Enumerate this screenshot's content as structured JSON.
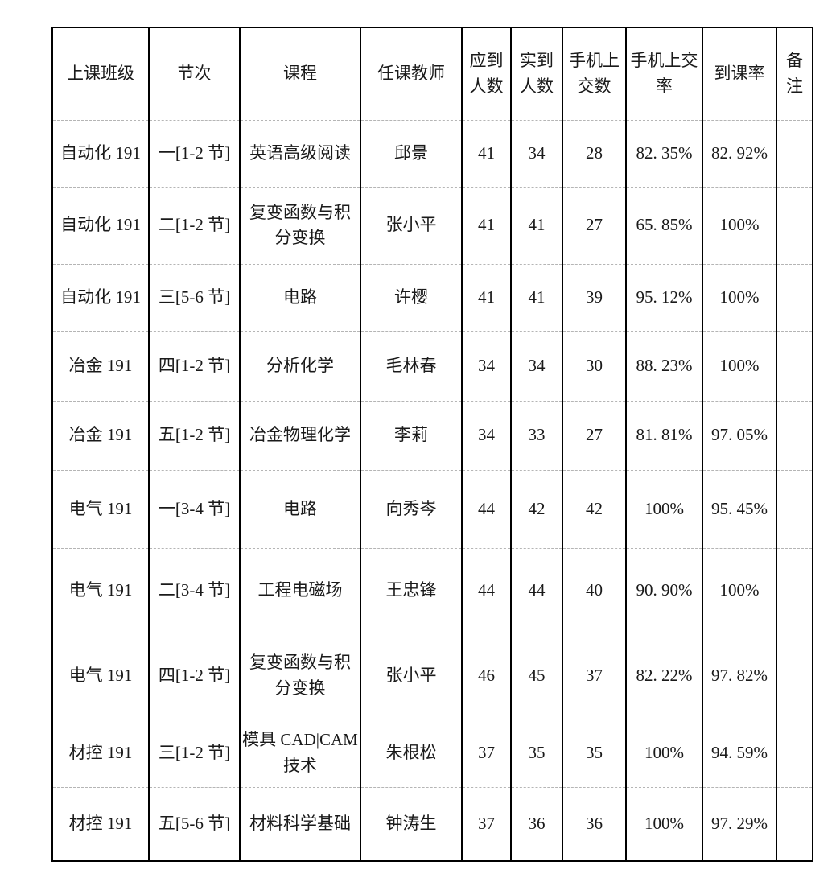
{
  "colors": {
    "background": "#ffffff",
    "text": "#1a1a1a",
    "grid_solid": "#000000",
    "grid_dashed": "#b5b5b5"
  },
  "table": {
    "headers": [
      "上课班级",
      "节次",
      "课程",
      "任课教师",
      "应到人数",
      "实到人数",
      "手机上交数",
      "手机上交率",
      "到课率",
      "备注"
    ],
    "columns_keys": [
      "class_name",
      "period",
      "course",
      "teacher",
      "expected_count",
      "actual_count",
      "phones_submitted",
      "phone_submit_rate",
      "attendance_rate",
      "remark"
    ],
    "rows": [
      {
        "class_name": "自动化 191",
        "period": "一[1-2 节]",
        "course": "英语高级阅读",
        "teacher": "邱景",
        "expected_count": "41",
        "actual_count": "34",
        "phones_submitted": "28",
        "phone_submit_rate": "82. 35%",
        "attendance_rate": "82. 92%",
        "remark": ""
      },
      {
        "class_name": "自动化 191",
        "period": "二[1-2 节]",
        "course": "复变函数与积分变换",
        "teacher": "张小平",
        "expected_count": "41",
        "actual_count": "41",
        "phones_submitted": "27",
        "phone_submit_rate": "65. 85%",
        "attendance_rate": "100%",
        "remark": ""
      },
      {
        "class_name": "自动化 191",
        "period": "三[5-6 节]",
        "course": "电路",
        "teacher": "许樱",
        "expected_count": "41",
        "actual_count": "41",
        "phones_submitted": "39",
        "phone_submit_rate": "95. 12%",
        "attendance_rate": "100%",
        "remark": ""
      },
      {
        "class_name": "冶金 191",
        "period": "四[1-2 节]",
        "course": "分析化学",
        "teacher": "毛林春",
        "expected_count": "34",
        "actual_count": "34",
        "phones_submitted": "30",
        "phone_submit_rate": "88. 23%",
        "attendance_rate": "100%",
        "remark": ""
      },
      {
        "class_name": "冶金 191",
        "period": "五[1-2 节]",
        "course": "冶金物理化学",
        "teacher": "李莉",
        "expected_count": "34",
        "actual_count": "33",
        "phones_submitted": "27",
        "phone_submit_rate": "81. 81%",
        "attendance_rate": "97. 05%",
        "remark": ""
      },
      {
        "class_name": "电气 191",
        "period": "一[3-4 节]",
        "course": "电路",
        "teacher": "向秀岑",
        "expected_count": "44",
        "actual_count": "42",
        "phones_submitted": "42",
        "phone_submit_rate": "100%",
        "attendance_rate": "95. 45%",
        "remark": ""
      },
      {
        "class_name": "电气 191",
        "period": "二[3-4 节]",
        "course": "工程电磁场",
        "teacher": "王忠锋",
        "expected_count": "44",
        "actual_count": "44",
        "phones_submitted": "40",
        "phone_submit_rate": "90. 90%",
        "attendance_rate": "100%",
        "remark": ""
      },
      {
        "class_name": "电气 191",
        "period": "四[1-2 节]",
        "course": "复变函数与积分变换",
        "teacher": "张小平",
        "expected_count": "46",
        "actual_count": "45",
        "phones_submitted": "37",
        "phone_submit_rate": "82. 22%",
        "attendance_rate": "97. 82%",
        "remark": ""
      },
      {
        "class_name": "材控 191",
        "period": "三[1-2 节]",
        "course": "模具 CAD|CAM 技术",
        "teacher": "朱根松",
        "expected_count": "37",
        "actual_count": "35",
        "phones_submitted": "35",
        "phone_submit_rate": "100%",
        "attendance_rate": "94. 59%",
        "remark": ""
      },
      {
        "class_name": "材控 191",
        "period": "五[5-6 节]",
        "course": "材料科学基础",
        "teacher": "钟涛生",
        "expected_count": "37",
        "actual_count": "36",
        "phones_submitted": "36",
        "phone_submit_rate": "100%",
        "attendance_rate": "97. 29%",
        "remark": ""
      }
    ]
  }
}
